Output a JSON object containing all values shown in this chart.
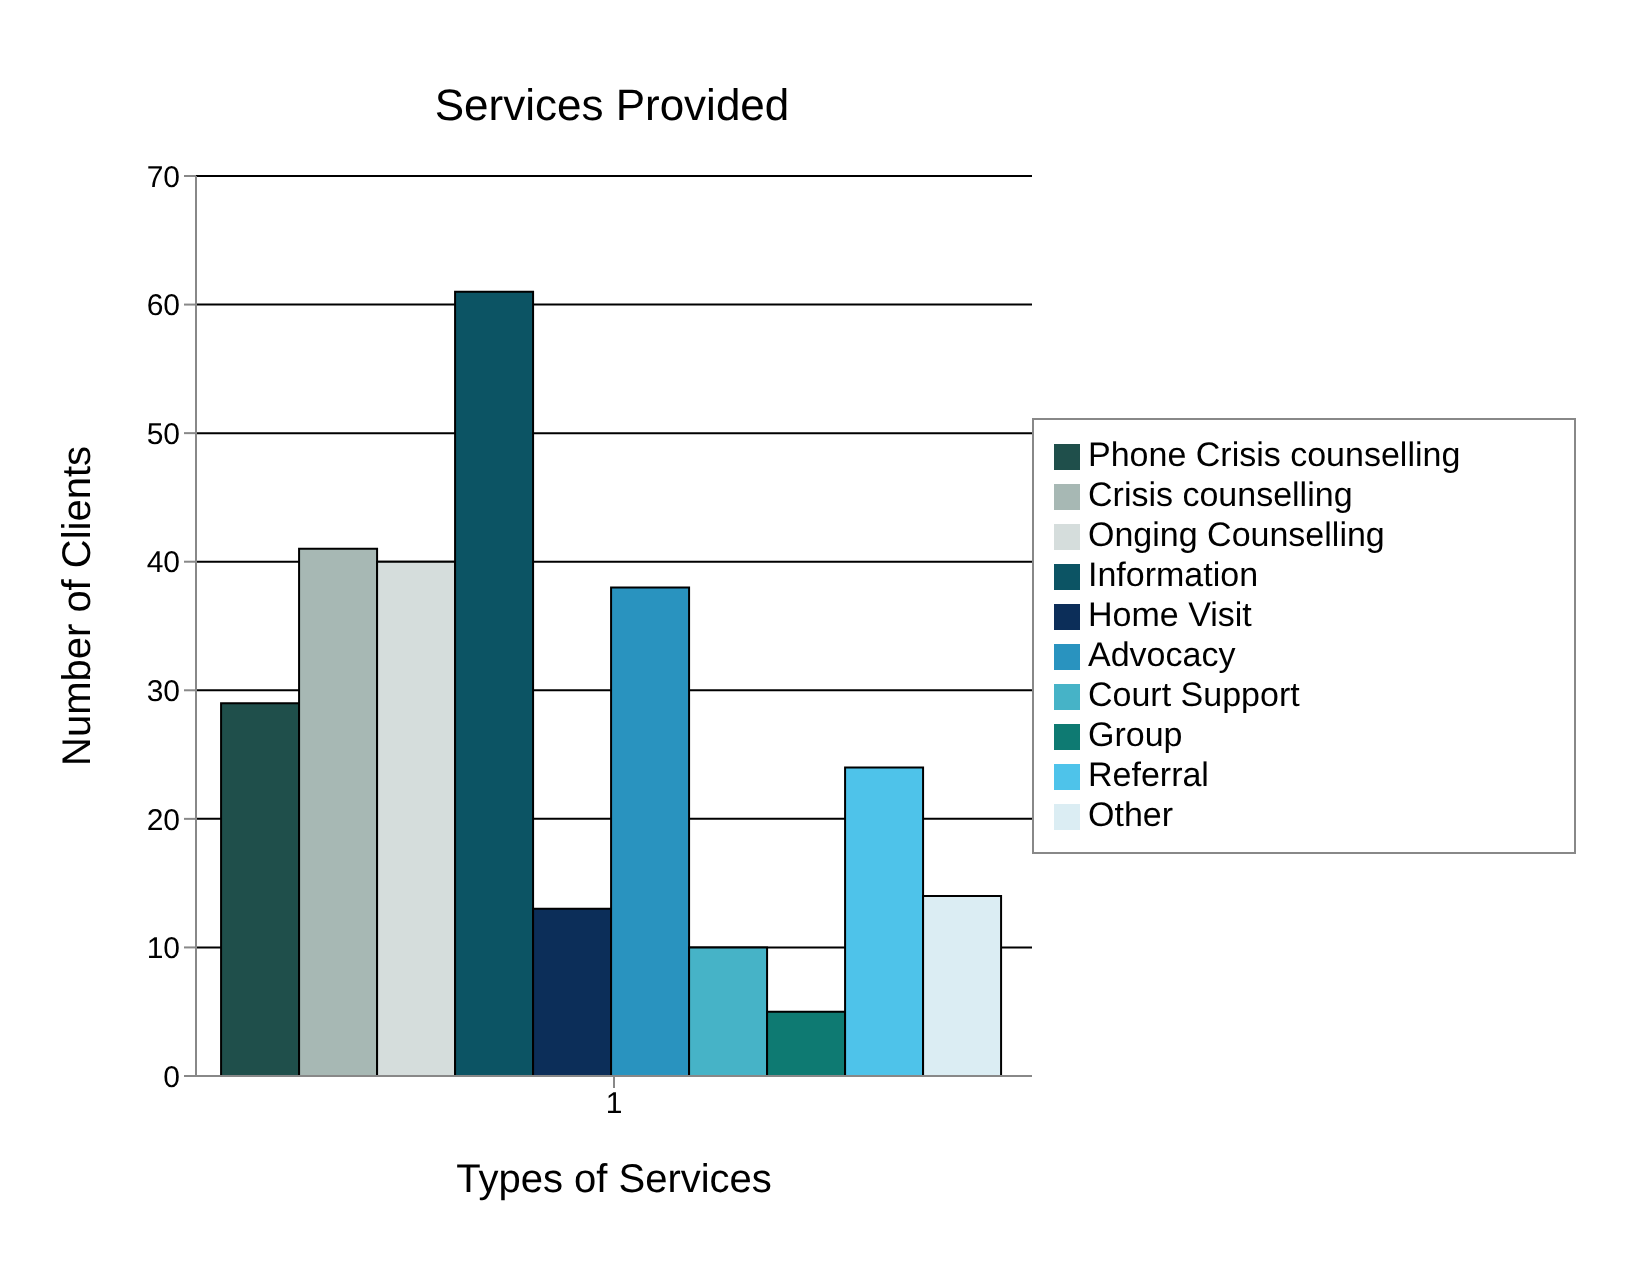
{
  "chart_data": {
    "type": "bar",
    "title": "Services Provided",
    "xlabel": "Types of Services",
    "ylabel": "Number of Clients",
    "categories": [
      "1"
    ],
    "series": [
      {
        "name": "Phone Crisis counselling",
        "color": "#1f4f4b",
        "values": [
          29
        ]
      },
      {
        "name": "Crisis counselling",
        "color": "#a7b8b4",
        "values": [
          41
        ]
      },
      {
        "name": "Onging Counselling",
        "color": "#d5dddc",
        "values": [
          40
        ]
      },
      {
        "name": "Information",
        "color": "#0c5464",
        "values": [
          61
        ]
      },
      {
        "name": "Home Visit",
        "color": "#0c2e59",
        "values": [
          13
        ]
      },
      {
        "name": "Advocacy",
        "color": "#2993bf",
        "values": [
          38
        ]
      },
      {
        "name": "Court Support",
        "color": "#46b3c7",
        "values": [
          10
        ]
      },
      {
        "name": "Group",
        "color": "#0e7a72",
        "values": [
          5
        ]
      },
      {
        "name": "Referral",
        "color": "#4ec3ea",
        "values": [
          24
        ]
      },
      {
        "name": "Other",
        "color": "#dbedf3",
        "values": [
          14
        ]
      }
    ],
    "ylim": [
      0,
      70
    ],
    "yticks": [
      0,
      10,
      20,
      30,
      40,
      50,
      60,
      70
    ],
    "grid": "y",
    "legend": "right"
  }
}
